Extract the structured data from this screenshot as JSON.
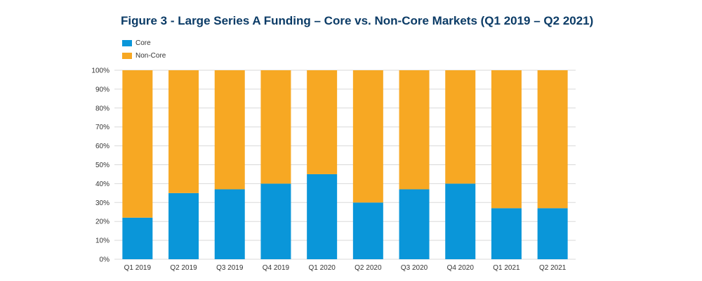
{
  "title": "Figure 3 - Large Series A Funding – Core vs. Non-Core Markets (Q1 2019 – Q2 2021)",
  "colors": {
    "core": "#0a96d9",
    "noncore": "#f7a823",
    "grid": "#d9d9d9",
    "text": "#333333",
    "title": "#0b3b66"
  },
  "legend": [
    {
      "label": "Core",
      "color": "#0a96d9"
    },
    {
      "label": "Non-Core",
      "color": "#f7a823"
    }
  ],
  "chart_data": {
    "type": "bar",
    "stacked": true,
    "categories": [
      "Q1 2019",
      "Q2 2019",
      "Q3 2019",
      "Q4 2019",
      "Q1 2020",
      "Q2 2020",
      "Q3 2020",
      "Q4 2020",
      "Q1 2021",
      "Q2 2021"
    ],
    "series": [
      {
        "name": "Core",
        "values": [
          22,
          35,
          37,
          40,
          45,
          30,
          37,
          40,
          27,
          27
        ]
      },
      {
        "name": "Non-Core",
        "values": [
          78,
          65,
          63,
          60,
          55,
          70,
          63,
          60,
          73,
          73
        ]
      }
    ],
    "yticks": [
      "0%",
      "10%",
      "20%",
      "30%",
      "40%",
      "50%",
      "60%",
      "70%",
      "80%",
      "90%",
      "100%"
    ],
    "ylim": [
      0,
      100
    ],
    "grid": true,
    "legend_position": "top-left"
  }
}
